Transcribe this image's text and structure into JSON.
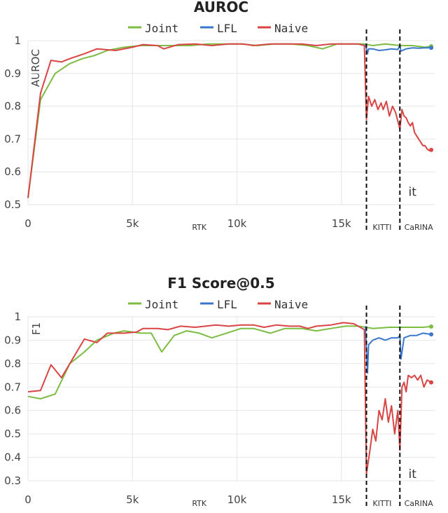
{
  "chart_data": [
    {
      "type": "line",
      "title": "AUROC",
      "ylabel": "AUROC",
      "xlim": [
        0,
        19500
      ],
      "ylim": [
        0.5,
        1.0
      ],
      "x_ticks": [
        0,
        5000,
        10000,
        15000
      ],
      "x_tick_labels": [
        "0",
        "5k",
        "10k",
        "15k"
      ],
      "y_ticks": [
        0.5,
        0.6,
        0.7,
        0.8,
        0.9,
        1.0
      ],
      "y_tick_labels": [
        "0.5",
        "0.6",
        "0.7",
        "0.8",
        "0.9",
        "1"
      ],
      "grid": false,
      "legend_position": "top-center",
      "vlines": [
        16200,
        17800
      ],
      "region_labels": [
        {
          "text": "RTK",
          "x": 8200
        },
        {
          "text": "KITTI",
          "x": 16950
        },
        {
          "text": "CaRINA",
          "x": 18700
        }
      ],
      "annotation": {
        "text": "it",
        "x": 18400,
        "y": 0.54
      },
      "series": [
        {
          "name": "Joint",
          "color": "#7cbc42",
          "points": [
            [
              0,
              0.52
            ],
            [
              600,
              0.82
            ],
            [
              1300,
              0.9
            ],
            [
              2000,
              0.93
            ],
            [
              2600,
              0.945
            ],
            [
              3200,
              0.955
            ],
            [
              3800,
              0.97
            ],
            [
              4600,
              0.98
            ],
            [
              5400,
              0.985
            ],
            [
              6200,
              0.985
            ],
            [
              7000,
              0.985
            ],
            [
              7800,
              0.985
            ],
            [
              8600,
              0.99
            ],
            [
              9400,
              0.99
            ],
            [
              10200,
              0.99
            ],
            [
              11000,
              0.985
            ],
            [
              11800,
              0.99
            ],
            [
              12600,
              0.99
            ],
            [
              13400,
              0.985
            ],
            [
              14100,
              0.975
            ],
            [
              14800,
              0.99
            ],
            [
              15500,
              0.99
            ],
            [
              16100,
              0.99
            ],
            [
              16500,
              0.985
            ],
            [
              17100,
              0.99
            ],
            [
              17800,
              0.985
            ],
            [
              18400,
              0.985
            ],
            [
              19000,
              0.98
            ],
            [
              19300,
              0.983
            ]
          ]
        },
        {
          "name": "LFL",
          "color": "#3b78cc",
          "points": [
            [
              16150,
              0.99
            ],
            [
              16250,
              0.96
            ],
            [
              16300,
              0.975
            ],
            [
              16500,
              0.975
            ],
            [
              16800,
              0.97
            ],
            [
              17100,
              0.972
            ],
            [
              17400,
              0.975
            ],
            [
              17700,
              0.973
            ],
            [
              17800,
              0.985
            ],
            [
              17850,
              0.968
            ],
            [
              18100,
              0.975
            ],
            [
              18400,
              0.978
            ],
            [
              18700,
              0.977
            ],
            [
              19000,
              0.978
            ],
            [
              19300,
              0.978
            ]
          ]
        },
        {
          "name": "Naive",
          "color": "#d94545",
          "points": [
            [
              0,
              0.52
            ],
            [
              600,
              0.84
            ],
            [
              1100,
              0.94
            ],
            [
              1600,
              0.935
            ],
            [
              2000,
              0.945
            ],
            [
              2700,
              0.96
            ],
            [
              3300,
              0.975
            ],
            [
              4200,
              0.97
            ],
            [
              5000,
              0.98
            ],
            [
              5500,
              0.988
            ],
            [
              6200,
              0.985
            ],
            [
              6500,
              0.975
            ],
            [
              7200,
              0.988
            ],
            [
              8000,
              0.99
            ],
            [
              8800,
              0.985
            ],
            [
              9600,
              0.99
            ],
            [
              10300,
              0.99
            ],
            [
              10800,
              0.985
            ],
            [
              11600,
              0.99
            ],
            [
              12300,
              0.99
            ],
            [
              13100,
              0.99
            ],
            [
              13800,
              0.985
            ],
            [
              14500,
              0.99
            ],
            [
              15200,
              0.99
            ],
            [
              15800,
              0.99
            ],
            [
              16100,
              0.985
            ],
            [
              16200,
              0.76
            ],
            [
              16300,
              0.83
            ],
            [
              16450,
              0.8
            ],
            [
              16600,
              0.82
            ],
            [
              16750,
              0.79
            ],
            [
              16900,
              0.81
            ],
            [
              17000,
              0.79
            ],
            [
              17150,
              0.815
            ],
            [
              17300,
              0.77
            ],
            [
              17450,
              0.8
            ],
            [
              17600,
              0.78
            ],
            [
              17800,
              0.73
            ],
            [
              17900,
              0.79
            ],
            [
              18000,
              0.77
            ],
            [
              18100,
              0.765
            ],
            [
              18200,
              0.75
            ],
            [
              18300,
              0.74
            ],
            [
              18400,
              0.75
            ],
            [
              18500,
              0.72
            ],
            [
              18600,
              0.71
            ],
            [
              18700,
              0.7
            ],
            [
              18800,
              0.69
            ],
            [
              18900,
              0.68
            ],
            [
              19000,
              0.68
            ],
            [
              19100,
              0.67
            ],
            [
              19200,
              0.665
            ],
            [
              19300,
              0.667
            ]
          ]
        }
      ]
    },
    {
      "type": "line",
      "title": "F1 Score@0.5",
      "ylabel": "F1",
      "xlim": [
        0,
        19500
      ],
      "ylim": [
        0.3,
        1.0
      ],
      "x_ticks": [
        0,
        5000,
        10000,
        15000
      ],
      "x_tick_labels": [
        "0",
        "5k",
        "10k",
        "15k"
      ],
      "y_ticks": [
        0.3,
        0.4,
        0.5,
        0.6,
        0.7,
        0.8,
        0.9,
        1.0
      ],
      "y_tick_labels": [
        "0.3",
        "0.4",
        "0.5",
        "0.6",
        "0.7",
        "0.8",
        "0.9",
        "1"
      ],
      "grid": false,
      "legend_position": "top-center",
      "vlines": [
        16200,
        17800
      ],
      "region_labels": [
        {
          "text": "RTK",
          "x": 8200
        },
        {
          "text": "KITTI",
          "x": 16950
        },
        {
          "text": "CaRINA",
          "x": 18700
        }
      ],
      "annotation": {
        "text": "it",
        "x": 18400,
        "y": 0.33
      },
      "series": [
        {
          "name": "Joint",
          "color": "#7cbc42",
          "points": [
            [
              0,
              0.66
            ],
            [
              600,
              0.65
            ],
            [
              1300,
              0.67
            ],
            [
              2000,
              0.8
            ],
            [
              2700,
              0.85
            ],
            [
              3300,
              0.9
            ],
            [
              4100,
              0.93
            ],
            [
              4600,
              0.94
            ],
            [
              5400,
              0.93
            ],
            [
              5900,
              0.93
            ],
            [
              6400,
              0.85
            ],
            [
              7000,
              0.92
            ],
            [
              7600,
              0.94
            ],
            [
              8200,
              0.93
            ],
            [
              8800,
              0.91
            ],
            [
              9500,
              0.93
            ],
            [
              10200,
              0.95
            ],
            [
              10800,
              0.95
            ],
            [
              11600,
              0.93
            ],
            [
              12300,
              0.95
            ],
            [
              13100,
              0.95
            ],
            [
              13800,
              0.94
            ],
            [
              14500,
              0.95
            ],
            [
              15200,
              0.96
            ],
            [
              15800,
              0.96
            ],
            [
              16200,
              0.955
            ],
            [
              16500,
              0.95
            ],
            [
              17300,
              0.955
            ],
            [
              17800,
              0.955
            ],
            [
              18300,
              0.955
            ],
            [
              18900,
              0.955
            ],
            [
              19300,
              0.958
            ]
          ]
        },
        {
          "name": "LFL",
          "color": "#3b78cc",
          "points": [
            [
              16150,
              0.96
            ],
            [
              16250,
              0.76
            ],
            [
              16300,
              0.88
            ],
            [
              16500,
              0.9
            ],
            [
              16800,
              0.91
            ],
            [
              17100,
              0.9
            ],
            [
              17400,
              0.91
            ],
            [
              17700,
              0.91
            ],
            [
              17800,
              0.92
            ],
            [
              17850,
              0.82
            ],
            [
              18000,
              0.91
            ],
            [
              18300,
              0.92
            ],
            [
              18600,
              0.92
            ],
            [
              18900,
              0.93
            ],
            [
              19300,
              0.925
            ]
          ]
        },
        {
          "name": "Naive",
          "color": "#d94545",
          "points": [
            [
              0,
              0.68
            ],
            [
              600,
              0.685
            ],
            [
              1100,
              0.795
            ],
            [
              1600,
              0.74
            ],
            [
              2000,
              0.8
            ],
            [
              2700,
              0.905
            ],
            [
              3300,
              0.89
            ],
            [
              3800,
              0.93
            ],
            [
              4600,
              0.93
            ],
            [
              5200,
              0.935
            ],
            [
              5500,
              0.95
            ],
            [
              6200,
              0.95
            ],
            [
              6700,
              0.945
            ],
            [
              7300,
              0.96
            ],
            [
              8000,
              0.955
            ],
            [
              8500,
              0.96
            ],
            [
              9000,
              0.965
            ],
            [
              9600,
              0.96
            ],
            [
              10200,
              0.965
            ],
            [
              10800,
              0.965
            ],
            [
              11300,
              0.955
            ],
            [
              11900,
              0.965
            ],
            [
              12500,
              0.96
            ],
            [
              13000,
              0.96
            ],
            [
              13400,
              0.95
            ],
            [
              13800,
              0.96
            ],
            [
              14500,
              0.965
            ],
            [
              15100,
              0.975
            ],
            [
              15600,
              0.97
            ],
            [
              16100,
              0.945
            ],
            [
              16200,
              0.33
            ],
            [
              16350,
              0.42
            ],
            [
              16500,
              0.52
            ],
            [
              16650,
              0.47
            ],
            [
              16800,
              0.6
            ],
            [
              16950,
              0.56
            ],
            [
              17100,
              0.65
            ],
            [
              17250,
              0.55
            ],
            [
              17400,
              0.62
            ],
            [
              17550,
              0.5
            ],
            [
              17700,
              0.6
            ],
            [
              17800,
              0.43
            ],
            [
              17900,
              0.7
            ],
            [
              18000,
              0.72
            ],
            [
              18100,
              0.68
            ],
            [
              18200,
              0.75
            ],
            [
              18350,
              0.74
            ],
            [
              18500,
              0.75
            ],
            [
              18650,
              0.73
            ],
            [
              18800,
              0.75
            ],
            [
              18950,
              0.7
            ],
            [
              19100,
              0.73
            ],
            [
              19300,
              0.72
            ]
          ]
        }
      ]
    }
  ]
}
